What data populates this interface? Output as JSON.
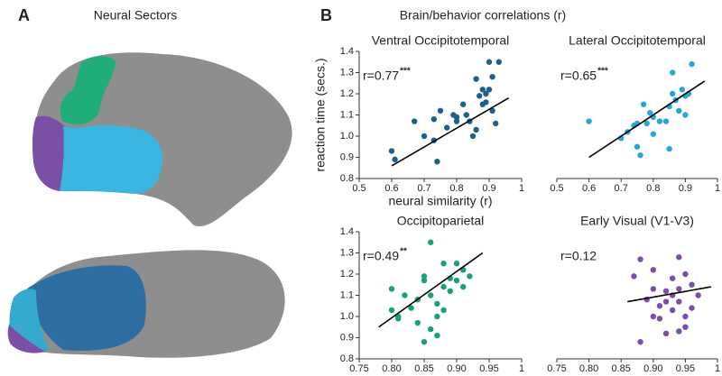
{
  "panels": {
    "a": {
      "label": "A",
      "title": "Neural Sectors"
    },
    "b": {
      "label": "B",
      "title": "Brain/behavior correlations (r)"
    }
  },
  "chart_data": [
    {
      "type": "scatter",
      "title": "Ventral Occipitotemporal",
      "color": "#1f5f8b",
      "annotation": "r=0.77",
      "significance": "***",
      "xlabel": "neural similarity (r)",
      "ylabel": "reaction time (secs.)",
      "x": [
        0.6,
        0.61,
        0.67,
        0.7,
        0.73,
        0.73,
        0.74,
        0.75,
        0.77,
        0.79,
        0.8,
        0.8,
        0.82,
        0.83,
        0.84,
        0.85,
        0.86,
        0.86,
        0.87,
        0.88,
        0.88,
        0.89,
        0.89,
        0.9,
        0.9,
        0.91,
        0.92,
        0.93,
        0.91
      ],
      "values": [
        0.93,
        0.89,
        1.07,
        1.0,
        1.08,
        0.98,
        0.88,
        1.12,
        1.04,
        1.1,
        1.09,
        1.07,
        1.15,
        1.1,
        1.07,
        1.0,
        1.03,
        1.27,
        1.19,
        1.22,
        1.15,
        1.2,
        1.16,
        1.35,
        1.22,
        1.12,
        1.06,
        1.35,
        1.28
      ],
      "fit": {
        "x": [
          0.6,
          0.96
        ],
        "y": [
          0.86,
          1.18
        ]
      },
      "xlim": [
        0.5,
        1
      ],
      "ylim": [
        0.8,
        1.4
      ],
      "xticks": [
        0.5,
        0.6,
        0.7,
        0.8,
        0.9,
        1
      ],
      "yticks": [
        0.8,
        0.9,
        {
          "value": 1,
          "label": "1.0"
        },
        1.1,
        1.2,
        1.3,
        1.4
      ]
    },
    {
      "type": "scatter",
      "title": "Lateral Occipitotemporal",
      "color": "#2aa6d6",
      "annotation": "r=0.65",
      "significance": "***",
      "x": [
        0.6,
        0.7,
        0.72,
        0.74,
        0.75,
        0.75,
        0.76,
        0.77,
        0.78,
        0.79,
        0.8,
        0.8,
        0.82,
        0.84,
        0.85,
        0.85,
        0.86,
        0.86,
        0.87,
        0.88,
        0.89,
        0.9,
        0.91,
        0.92,
        0.9
      ],
      "values": [
        1.07,
        0.99,
        1.02,
        1.05,
        1.06,
        0.95,
        0.91,
        1.15,
        1.06,
        1.11,
        1.09,
        1.01,
        1.07,
        1.07,
        0.94,
        1.14,
        1.2,
        1.3,
        1.17,
        1.12,
        1.22,
        1.19,
        1.2,
        1.34,
        1.1
      ],
      "fit": {
        "x": [
          0.6,
          0.96
        ],
        "y": [
          0.9,
          1.26
        ]
      },
      "xlim": [
        0.5,
        1
      ],
      "ylim": [
        0.8,
        1.4
      ],
      "xticks": [
        0.5,
        0.6,
        0.7,
        0.8,
        0.9,
        1
      ]
    },
    {
      "type": "scatter",
      "title": "Occipitoparietal",
      "color": "#1aa36f",
      "annotation": "r=0.49",
      "significance": "**",
      "x": [
        0.8,
        0.8,
        0.81,
        0.81,
        0.82,
        0.83,
        0.84,
        0.84,
        0.85,
        0.85,
        0.85,
        0.86,
        0.86,
        0.86,
        0.87,
        0.87,
        0.88,
        0.88,
        0.88,
        0.89,
        0.89,
        0.9,
        0.9,
        0.91,
        0.91,
        0.92,
        0.87
      ],
      "values": [
        1.13,
        1.03,
        1.0,
        0.99,
        1.1,
        1.04,
        1.08,
        0.97,
        1.17,
        1.19,
        0.88,
        1.35,
        1.1,
        0.94,
        1.06,
        1.0,
        1.14,
        1.25,
        1.03,
        1.12,
        1.18,
        1.25,
        1.17,
        1.14,
        1.22,
        1.19,
        0.91
      ],
      "fit": {
        "x": [
          0.78,
          0.94
        ],
        "y": [
          0.95,
          1.3
        ]
      },
      "xlim": [
        0.75,
        1
      ],
      "ylim": [
        0.8,
        1.4
      ],
      "xticks": [
        0.75,
        {
          "value": 0.8,
          "label": "0.80"
        },
        0.85,
        {
          "value": 0.9,
          "label": "0.90"
        },
        0.95,
        1
      ],
      "yticks": [
        0.8,
        0.9,
        {
          "value": 1,
          "label": "1.0"
        },
        1.1,
        1.2,
        1.3,
        1.4
      ]
    },
    {
      "type": "scatter",
      "title": "Early Visual (V1-V3)",
      "color": "#7b4fa8",
      "annotation": "r=0.12",
      "x": [
        0.87,
        0.88,
        0.88,
        0.89,
        0.9,
        0.9,
        0.9,
        0.91,
        0.91,
        0.92,
        0.92,
        0.92,
        0.93,
        0.93,
        0.93,
        0.94,
        0.94,
        0.94,
        0.95,
        0.95,
        0.95,
        0.96,
        0.96,
        0.97,
        0.94
      ],
      "values": [
        1.19,
        1.27,
        0.88,
        1.08,
        1.13,
        1.0,
        1.22,
        1.05,
        0.99,
        1.12,
        1.07,
        0.92,
        1.03,
        1.18,
        1.1,
        1.28,
        1.07,
        1.13,
        1.2,
        1.0,
        0.95,
        1.15,
        1.04,
        1.1,
        0.93
      ],
      "fit": {
        "x": [
          0.86,
          0.99
        ],
        "y": [
          1.07,
          1.14
        ]
      },
      "xlim": [
        0.75,
        1
      ],
      "ylim": [
        0.8,
        1.4
      ],
      "xticks": [
        0.75,
        {
          "value": 0.8,
          "label": "0.80"
        },
        0.85,
        {
          "value": 0.9,
          "label": "0.90"
        },
        0.95,
        1
      ]
    }
  ]
}
